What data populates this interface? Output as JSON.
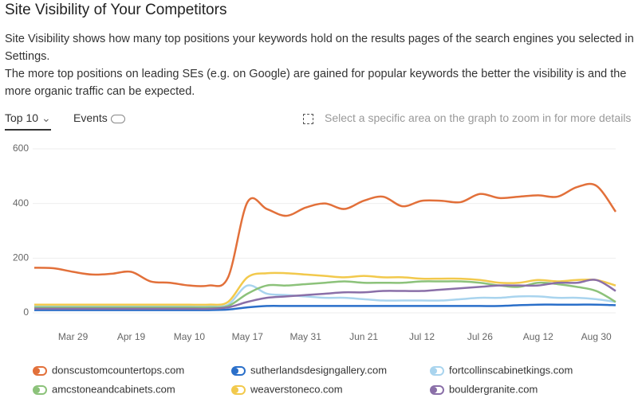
{
  "header": {
    "title": "Site Visibility of Your Competitors",
    "description": [
      "Site Visibility shows how many top positions your keywords hold on the results pages of the search engines you selected in Settings.",
      "The more top positions on leading SEs (e.g. on Google) are gained for popular keywords the better the visibility is and the more organic traffic can be expected."
    ]
  },
  "controls": {
    "period": "Top 10",
    "events": "Events",
    "hint": "Select a specific area on the graph to zoom in for more details"
  },
  "chart_data": {
    "type": "line",
    "categories": [
      null,
      null,
      "Mar 29",
      null,
      null,
      "Apr 19",
      null,
      null,
      "May 10",
      null,
      null,
      "May 17",
      null,
      null,
      "May 31",
      null,
      null,
      "Jun 21",
      null,
      null,
      "Jul 12",
      null,
      null,
      "Jul 26",
      null,
      null,
      "Aug 12",
      null,
      null,
      "Aug 30",
      null
    ],
    "ylim": [
      0,
      600
    ],
    "yticks": [
      0,
      200,
      400,
      600
    ],
    "grid": true,
    "series": [
      {
        "name": "donscustomcountertops.com",
        "color": "#e2703a",
        "values": [
          165,
          163,
          150,
          140,
          143,
          150,
          115,
          110,
          100,
          100,
          130,
          405,
          380,
          355,
          385,
          400,
          380,
          410,
          425,
          390,
          410,
          410,
          405,
          435,
          420,
          425,
          430,
          425,
          460,
          465,
          370
        ]
      },
      {
        "name": "sutherlandsdesigngallery.com",
        "color": "#2a6fc9",
        "values": [
          10,
          10,
          10,
          10,
          10,
          10,
          10,
          10,
          10,
          10,
          12,
          20,
          25,
          25,
          25,
          25,
          25,
          25,
          25,
          25,
          25,
          25,
          25,
          25,
          25,
          28,
          30,
          30,
          30,
          30,
          28
        ]
      },
      {
        "name": "fortcollinscabinetkings.com",
        "color": "#a9d4ee",
        "values": [
          25,
          25,
          25,
          25,
          25,
          25,
          25,
          25,
          25,
          25,
          30,
          100,
          70,
          65,
          60,
          55,
          55,
          50,
          45,
          45,
          45,
          45,
          50,
          55,
          55,
          60,
          60,
          55,
          55,
          50,
          40
        ]
      },
      {
        "name": "amcstoneandcabinets.com",
        "color": "#8cc27a",
        "values": [
          20,
          20,
          20,
          20,
          20,
          20,
          20,
          20,
          20,
          20,
          25,
          70,
          100,
          100,
          105,
          110,
          115,
          110,
          110,
          110,
          115,
          115,
          115,
          110,
          100,
          95,
          110,
          105,
          95,
          80,
          40
        ]
      },
      {
        "name": "weaverstoneco.com",
        "color": "#f2c94c",
        "values": [
          30,
          30,
          30,
          30,
          30,
          30,
          30,
          30,
          30,
          30,
          40,
          130,
          145,
          145,
          140,
          135,
          130,
          135,
          130,
          130,
          125,
          125,
          125,
          120,
          110,
          110,
          120,
          115,
          120,
          120,
          100
        ]
      },
      {
        "name": "bouldergranite.com",
        "color": "#8a6fa8",
        "values": [
          15,
          15,
          15,
          15,
          15,
          15,
          15,
          15,
          15,
          15,
          20,
          40,
          55,
          60,
          65,
          70,
          75,
          75,
          80,
          80,
          80,
          85,
          90,
          95,
          100,
          100,
          100,
          110,
          110,
          120,
          80
        ]
      }
    ]
  }
}
